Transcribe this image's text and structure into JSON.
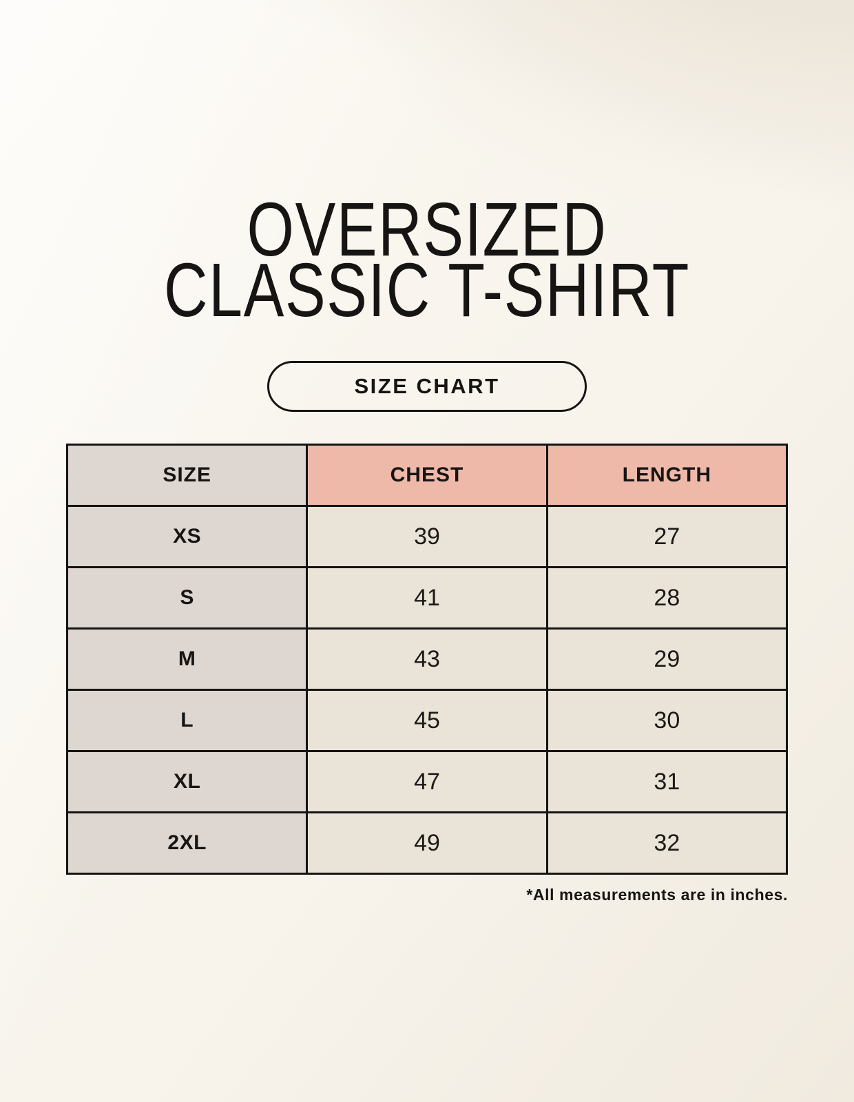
{
  "page": {
    "title_line1": "OVERSIZED",
    "title_line2": "CLASSIC T-SHIRT",
    "button_label": "SIZE CHART",
    "footnote": "*All measurements are in inches."
  },
  "chart_data": {
    "type": "table",
    "title": "OVERSIZED CLASSIC T-SHIRT",
    "subtitle": "SIZE CHART",
    "units": "inches",
    "columns": [
      "SIZE",
      "CHEST",
      "LENGTH"
    ],
    "rows": [
      {
        "size": "XS",
        "chest": "39",
        "length": "27"
      },
      {
        "size": "S",
        "chest": "41",
        "length": "28"
      },
      {
        "size": "M",
        "chest": "43",
        "length": "29"
      },
      {
        "size": "L",
        "chest": "45",
        "length": "30"
      },
      {
        "size": "XL",
        "chest": "47",
        "length": "31"
      },
      {
        "size": "2XL",
        "chest": "49",
        "length": "32"
      }
    ],
    "note": "*All measurements are in inches."
  },
  "colors": {
    "page_background": "#f8f4ec",
    "header_accent_salmon": "#eeb9a9",
    "size_column_gray": "#ddd6d1",
    "data_cell_cream": "#eae3d7",
    "border_black": "#141414",
    "text_black": "#171513"
  }
}
